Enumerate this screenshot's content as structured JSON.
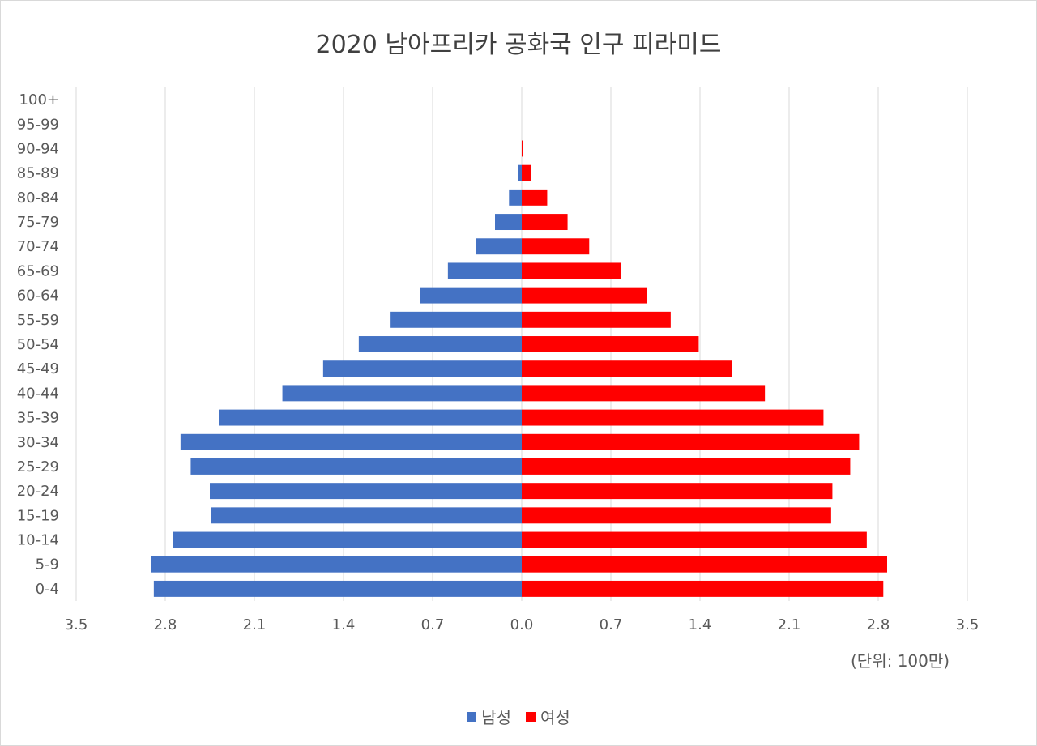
{
  "chart_data": {
    "type": "bar",
    "orientation": "horizontal",
    "layout": "population-pyramid",
    "title": "2020 남아프리카 공화국 인구 피라미드",
    "unit_note": "(단위: 100만)",
    "categories": [
      "100+",
      "95-99",
      "90-94",
      "85-89",
      "80-84",
      "75-79",
      "70-74",
      "65-69",
      "60-64",
      "55-59",
      "50-54",
      "45-49",
      "40-44",
      "35-39",
      "30-34",
      "25-29",
      "20-24",
      "15-19",
      "10-14",
      "5-9",
      "0-4"
    ],
    "series": [
      {
        "name": "남성",
        "side": "left",
        "color": "#4472c4",
        "values": [
          0.0,
          0.0,
          0.0,
          0.03,
          0.1,
          0.21,
          0.36,
          0.58,
          0.8,
          1.03,
          1.28,
          1.56,
          1.88,
          2.38,
          2.68,
          2.6,
          2.45,
          2.44,
          2.74,
          2.91,
          2.89
        ]
      },
      {
        "name": "여성",
        "side": "right",
        "color": "#ff0000",
        "values": [
          0.0,
          0.0,
          0.01,
          0.07,
          0.2,
          0.36,
          0.53,
          0.78,
          0.98,
          1.17,
          1.39,
          1.65,
          1.91,
          2.37,
          2.65,
          2.58,
          2.44,
          2.43,
          2.71,
          2.87,
          2.84
        ]
      }
    ],
    "xlim": [
      -3.5,
      3.5
    ],
    "x_ticks": [
      -3.5,
      -2.8,
      -2.1,
      -1.4,
      -0.7,
      0,
      0.7,
      1.4,
      2.1,
      2.8,
      3.5
    ],
    "x_tick_labels": [
      "3.5",
      "2.8",
      "2.1",
      "1.4",
      "0.7",
      "0.0",
      "0.7",
      "1.4",
      "2.1",
      "2.8",
      "3.5"
    ],
    "grid": "vertical",
    "legend_position": "bottom"
  }
}
